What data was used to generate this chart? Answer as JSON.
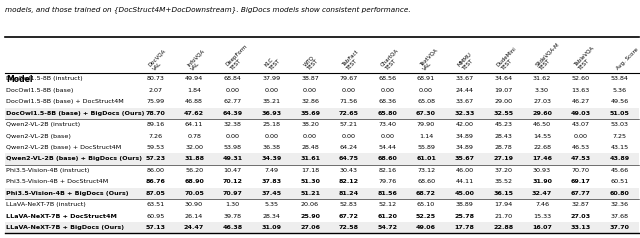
{
  "caption": "models, and those trained on {DocStruct4M+DocDownstream}. BigDocs models show consistent performance.",
  "columns": [
    "Model",
    "DocVQA\nVAL",
    "InfoVQA\nVAL",
    "DeepForm\nTEST",
    "KLC\nTEST",
    "WTQ\nTEST",
    "TabFact\nTEST",
    "ChartQA\nTEST",
    "TextVQA\nVAL",
    "MMMU\nTEST",
    "DudeMini\nTEST",
    "SlideVQA-M\nTEST",
    "TableVQA\nTEST",
    "Avg. Score"
  ],
  "rows": [
    [
      "DocOwl1.5-8B (instruct)",
      "80.73",
      "49.94",
      "68.84",
      "37.99",
      "38.87",
      "79.67",
      "68.56",
      "68.91",
      "33.67",
      "34.64",
      "31.62",
      "52.60",
      "53.84"
    ],
    [
      "DocOwl1.5-8B (base)",
      "2.07",
      "1.84",
      "0.00",
      "0.00",
      "0.00",
      "0.00",
      "0.00",
      "0.00",
      "24.44",
      "19.07",
      "3.30",
      "13.63",
      "5.36"
    ],
    [
      "DocOwl1.5-8B (base) + DocStruct4M",
      "75.99",
      "46.88",
      "62.77",
      "35.21",
      "32.86",
      "71.56",
      "68.36",
      "65.08",
      "33.67",
      "29.00",
      "27.03",
      "46.27",
      "49.56"
    ],
    [
      "DocOwl1.5-8B (base) + BigDocs (Ours)",
      "78.70",
      "47.62",
      "64.39",
      "36.93",
      "35.69",
      "72.65",
      "65.80",
      "67.30",
      "32.33",
      "32.55",
      "29.60",
      "49.03",
      "51.05"
    ],
    [
      "Qwen2-VL-2B (instruct)",
      "89.16",
      "64.11",
      "32.38",
      "25.18",
      "38.20",
      "57.21",
      "73.40",
      "79.90",
      "42.00",
      "45.23",
      "46.50",
      "43.07",
      "53.03"
    ],
    [
      "Qwen2-VL-2B (base)",
      "7.26",
      "0.78",
      "0.00",
      "0.00",
      "0.00",
      "0.00",
      "0.00",
      "1.14",
      "34.89",
      "28.43",
      "14.55",
      "0.00",
      "7.25"
    ],
    [
      "Qwen2-VL-2B (base) + DocStruct4M",
      "59.53",
      "32.00",
      "53.98",
      "36.38",
      "28.48",
      "64.24",
      "54.44",
      "55.89",
      "34.89",
      "28.78",
      "22.68",
      "46.53",
      "43.15"
    ],
    [
      "Qwen2-VL-2B (base) + BigDocs (Ours)",
      "57.23",
      "31.88",
      "49.31",
      "34.39",
      "31.61",
      "64.75",
      "68.60",
      "61.01",
      "35.67",
      "27.19",
      "17.46",
      "47.53",
      "43.89"
    ],
    [
      "Phi3.5-Vision-4B (instruct)",
      "86.00",
      "56.20",
      "10.47",
      "7.49",
      "17.18",
      "30.43",
      "82.16",
      "73.12",
      "46.00",
      "37.20",
      "30.93",
      "70.70",
      "45.66"
    ],
    [
      "Phi3.5-Vision-4B + DocStruct4M",
      "86.76",
      "68.90",
      "70.12",
      "37.83",
      "51.30",
      "82.12",
      "79.76",
      "68.60",
      "44.11",
      "35.52",
      "31.90",
      "69.17",
      "60.51"
    ],
    [
      "Phi3.5-Vision-4B + BigDocs (Ours)",
      "87.05",
      "70.05",
      "70.97",
      "37.45",
      "51.21",
      "81.24",
      "81.56",
      "68.72",
      "45.00",
      "36.15",
      "32.47",
      "67.77",
      "60.80"
    ],
    [
      "LLaVA-NeXT-7B (instruct)",
      "63.51",
      "30.90",
      "1.30",
      "5.35",
      "20.06",
      "52.83",
      "52.12",
      "65.10",
      "38.89",
      "17.94",
      "7.46",
      "32.87",
      "32.36"
    ],
    [
      "LLaVA-NeXT-7B + DocStruct4M",
      "60.95",
      "26.14",
      "39.78",
      "28.34",
      "25.90",
      "67.72",
      "61.20",
      "52.25",
      "25.78",
      "21.70",
      "15.33",
      "27.03",
      "37.68"
    ],
    [
      "LLaVA-NeXT-7B + BigDocs (Ours)",
      "57.13",
      "24.47",
      "46.38",
      "31.09",
      "27.06",
      "72.58",
      "54.72",
      "49.06",
      "17.78",
      "22.88",
      "16.07",
      "33.13",
      "37.70"
    ]
  ],
  "bold_cells": {
    "3": [
      1,
      2,
      3,
      4,
      5,
      7,
      9,
      10,
      11,
      12
    ],
    "7": [
      4,
      6,
      7,
      8,
      11,
      12
    ],
    "9": [
      1,
      2,
      3,
      4,
      5,
      6,
      11,
      12
    ],
    "10": [
      0,
      1,
      2,
      6,
      8,
      9,
      12
    ],
    "12": [
      0,
      5,
      6,
      7,
      8,
      9,
      12
    ],
    "13": [
      2,
      3,
      4,
      5,
      9,
      12
    ]
  },
  "group_separators": [
    4,
    8,
    11
  ],
  "bg_color": "#ffffff"
}
